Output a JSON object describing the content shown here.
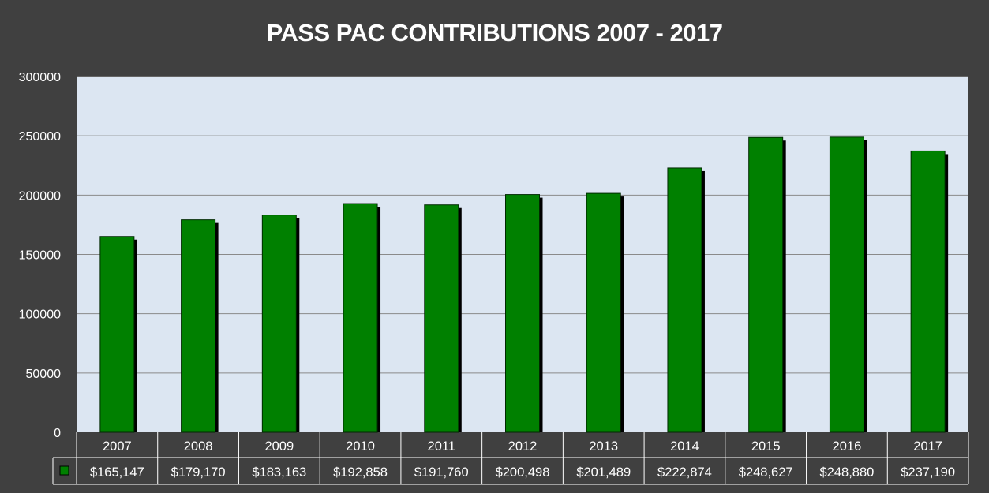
{
  "chart_data": {
    "type": "bar",
    "title": "PASS PAC CONTRIBUTIONS 2007 - 2017",
    "categories": [
      "2007",
      "2008",
      "2009",
      "2010",
      "2011",
      "2012",
      "2013",
      "2014",
      "2015",
      "2016",
      "2017"
    ],
    "series": [
      {
        "values": [
          165147,
          179170,
          183163,
          192858,
          191760,
          200498,
          201489,
          222874,
          248627,
          248880,
          237190
        ],
        "color": "#008000"
      }
    ],
    "data_table": [
      "$165,147",
      "$179,170",
      "$183,163",
      "$192,858",
      "$191,760",
      "$200,498",
      "$201,489",
      "$222,874",
      "$248,627",
      "$248,880",
      "$237,190"
    ],
    "yticks": [
      "0",
      "50000",
      "100000",
      "150000",
      "200000",
      "250000",
      "300000"
    ],
    "ylim": [
      0,
      300000
    ],
    "grid": true,
    "colors": {
      "background": "#404040",
      "plot_area": "#dce6f2",
      "bar": "#008000",
      "bar_shadow": "#000000"
    }
  }
}
